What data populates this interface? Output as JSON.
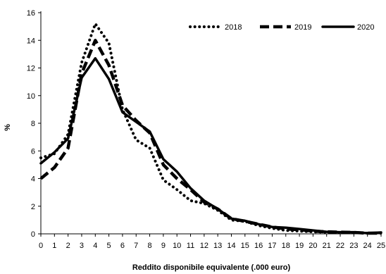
{
  "chart_data": {
    "type": "line",
    "title": "",
    "xlabel": "Reddito disponibile equivalente (.000 euro)",
    "ylabel": "%",
    "x": [
      0,
      1,
      2,
      3,
      4,
      5,
      6,
      7,
      8,
      9,
      10,
      11,
      12,
      13,
      14,
      15,
      16,
      17,
      18,
      19,
      20,
      21,
      22,
      23,
      24,
      25
    ],
    "xticks": [
      "0",
      "1",
      "2",
      "3",
      "4",
      "5",
      "6",
      "7",
      "8",
      "9",
      "10",
      "11",
      "12",
      "13",
      "14",
      "15",
      "16",
      "17",
      "18",
      "19",
      "20",
      "21",
      "22",
      "23",
      "24",
      "25"
    ],
    "xlim": [
      0,
      25
    ],
    "ylim": [
      0,
      16
    ],
    "yticks": [
      "0",
      "2",
      "4",
      "6",
      "8",
      "10",
      "12",
      "14",
      "16"
    ],
    "ytick_values": [
      0,
      2,
      4,
      6,
      8,
      10,
      12,
      14,
      16
    ],
    "grid": false,
    "legend_position": "top-right",
    "series": [
      {
        "name": "2018",
        "style": "dotted",
        "color": "#000000",
        "values": [
          5.5,
          5.8,
          7.2,
          12.4,
          15.2,
          13.8,
          9.0,
          6.8,
          6.2,
          3.9,
          3.2,
          2.4,
          2.2,
          1.7,
          1.0,
          0.9,
          0.6,
          0.4,
          0.25,
          0.2,
          0.15,
          0.12,
          0.1,
          0.08,
          0.05,
          0.05
        ]
      },
      {
        "name": "2019",
        "style": "dashed",
        "color": "#000000",
        "values": [
          4.0,
          4.8,
          6.2,
          11.6,
          14.0,
          12.2,
          9.3,
          8.2,
          7.3,
          5.0,
          4.0,
          3.2,
          2.3,
          1.8,
          1.1,
          0.9,
          0.7,
          0.5,
          0.35,
          0.3,
          0.2,
          0.15,
          0.12,
          0.1,
          0.05,
          0.05
        ]
      },
      {
        "name": "2020",
        "style": "solid",
        "color": "#000000",
        "values": [
          5.1,
          5.9,
          6.9,
          11.3,
          12.7,
          11.2,
          8.8,
          8.1,
          7.4,
          5.4,
          4.5,
          3.3,
          2.4,
          1.8,
          1.1,
          0.95,
          0.7,
          0.5,
          0.45,
          0.35,
          0.25,
          0.15,
          0.12,
          0.12,
          0.05,
          0.1
        ]
      }
    ]
  }
}
